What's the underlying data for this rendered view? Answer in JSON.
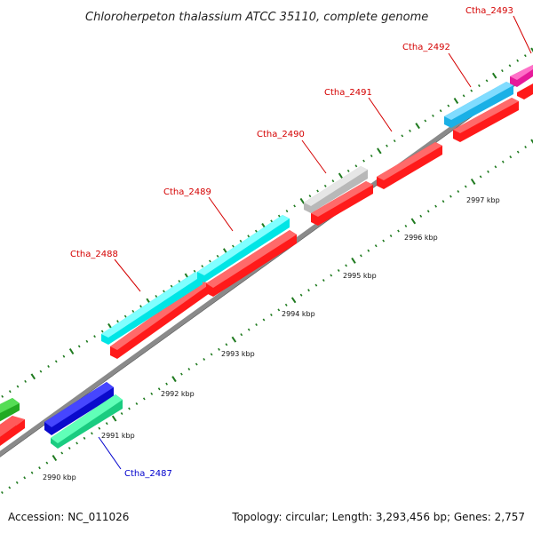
{
  "title": "Chloroherpeton thalassium ATCC 35110, complete genome",
  "footer": {
    "accession": "Accession: NC_011026",
    "summary": "Topology: circular; Length: 3,293,456 bp; Genes: 2,757"
  },
  "colors": {
    "backbone": "#8a8a8a",
    "tick": "#1f7a1f",
    "label_red": "#d40000",
    "label_blue": "#0000cc",
    "cds": "#ff1a1a"
  },
  "kbp_labels": [
    "2990 kbp",
    "2991 kbp",
    "2992 kbp",
    "2993 kbp",
    "2994 kbp",
    "2995 kbp",
    "2996 kbp",
    "2997 kbp"
  ],
  "genes": [
    {
      "id": "Ctha_2487",
      "color": "#0000cc"
    },
    {
      "id": "Ctha_2488",
      "color": "#d40000"
    },
    {
      "id": "Ctha_2489",
      "color": "#d40000"
    },
    {
      "id": "Ctha_2490",
      "color": "#d40000"
    },
    {
      "id": "Ctha_2491",
      "color": "#d40000"
    },
    {
      "id": "Ctha_2492",
      "color": "#d40000"
    },
    {
      "id": "Ctha_2493",
      "color": "#d40000"
    }
  ]
}
